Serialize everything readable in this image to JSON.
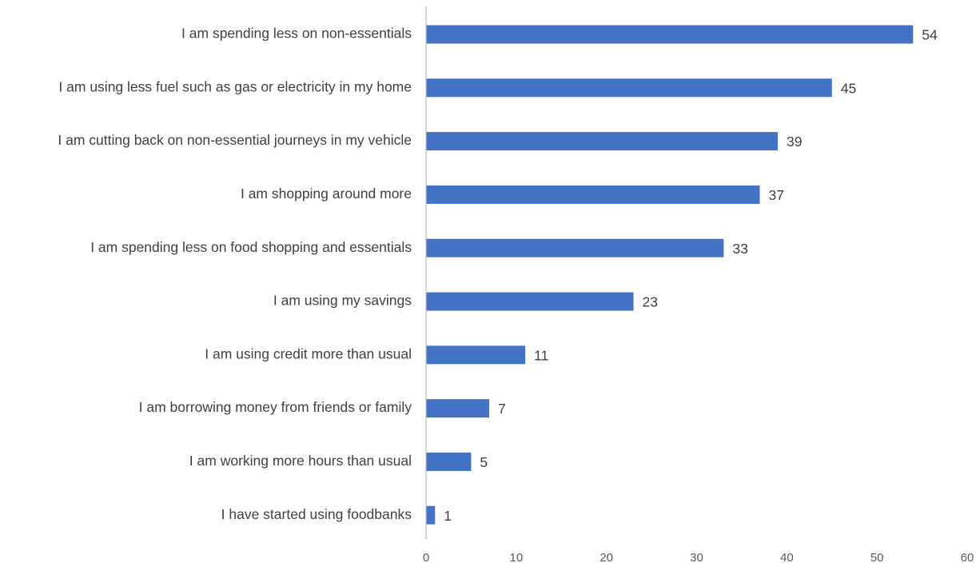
{
  "chart_data": {
    "type": "bar",
    "orientation": "horizontal",
    "title": "",
    "xlabel": "",
    "ylabel": "",
    "categories": [
      "I am spending less on non-essentials",
      "I am using less fuel such as gas or electricity in my home",
      "I am cutting back on non-essential journeys in my vehicle",
      "I am shopping around more",
      "I am spending less on food shopping and essentials",
      "I am using my savings",
      "I am using credit more than usual",
      "I am borrowing money from friends or family",
      "I am working more hours than usual",
      "I have started using foodbanks"
    ],
    "values": [
      54,
      45,
      39,
      37,
      33,
      23,
      11,
      7,
      5,
      1
    ],
    "xlim": [
      0,
      60
    ],
    "xticks": [
      0,
      10,
      20,
      30,
      40,
      50,
      60
    ],
    "grid": false,
    "legend": "none",
    "data_labels": true,
    "colors": {
      "bar": "#4472C4",
      "axis": "#BFBFBF",
      "text": "#404040"
    }
  }
}
